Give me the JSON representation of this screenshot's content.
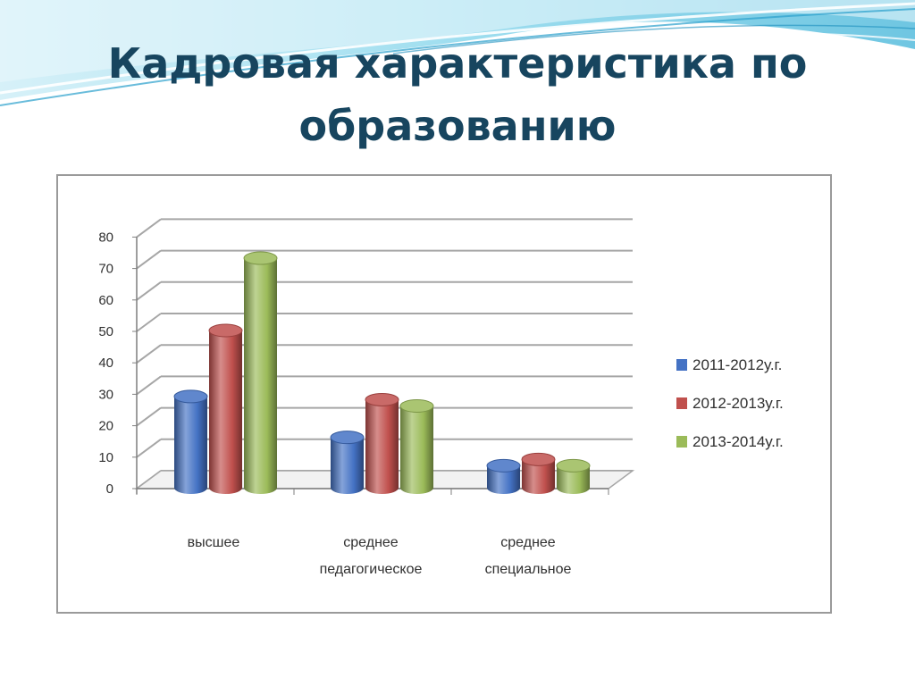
{
  "slide": {
    "title_line1": "Кадровая характеристика по",
    "title_line2": "образованию"
  },
  "colors": {
    "title": "#17455f",
    "series": [
      "#4472c4",
      "#c0504d",
      "#9bbb59"
    ]
  },
  "chart_data": {
    "type": "bar",
    "style": "3d-cylinder",
    "categories": [
      [
        "высшее"
      ],
      [
        "среднее",
        "педагогическое"
      ],
      [
        "среднее",
        "специальное"
      ]
    ],
    "series": [
      {
        "name": "2011-2012у.г.",
        "values": [
          29,
          16,
          7
        ]
      },
      {
        "name": "2012-2013у.г.",
        "values": [
          50,
          28,
          9
        ]
      },
      {
        "name": "2013-2014у.г.",
        "values": [
          73,
          26,
          7
        ]
      }
    ],
    "yticks": [
      "0",
      "10",
      "20",
      "30",
      "40",
      "50",
      "60",
      "70",
      "80"
    ],
    "ylim": [
      0,
      80
    ],
    "grid": true,
    "legend": "right"
  }
}
